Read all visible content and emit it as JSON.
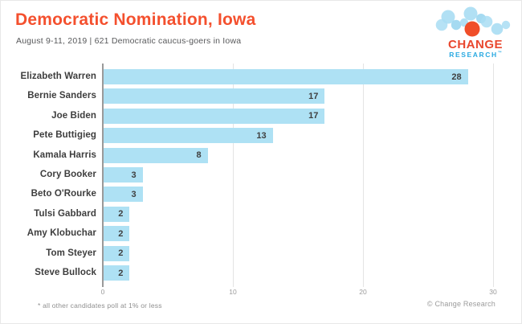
{
  "header": {
    "title": "Democratic Nomination, Iowa",
    "subtitle": "August 9-11, 2019  |  621 Democratic caucus-goers in Iowa"
  },
  "logo": {
    "line1": "CHANGE",
    "line2": "RESEARCH",
    "trademark": "™",
    "colors": {
      "bubble_blue": "#A9DDF3",
      "dot_orange": "#F04E29",
      "change_text": "#E9472E",
      "research_text": "#29A9E1"
    }
  },
  "chart_data": {
    "type": "bar",
    "orientation": "horizontal",
    "title": "Democratic Nomination, Iowa",
    "categories": [
      "Elizabeth Warren",
      "Bernie Sanders",
      "Joe Biden",
      "Pete Buttigieg",
      "Kamala Harris",
      "Cory Booker",
      "Beto O'Rourke",
      "Tulsi Gabbard",
      "Amy Klobuchar",
      "Tom Steyer",
      "Steve Bullock"
    ],
    "values": [
      28,
      17,
      17,
      13,
      8,
      3,
      3,
      2,
      2,
      2,
      2
    ],
    "xlim": [
      0,
      31.5
    ],
    "x_ticks": [
      0,
      10,
      20,
      30
    ],
    "grid": true,
    "bar_color": "#AEE1F4",
    "value_labels_inside": true
  },
  "footer": {
    "footnote": "* all other candidates poll at 1% or less",
    "copyright": "© Change Research"
  }
}
